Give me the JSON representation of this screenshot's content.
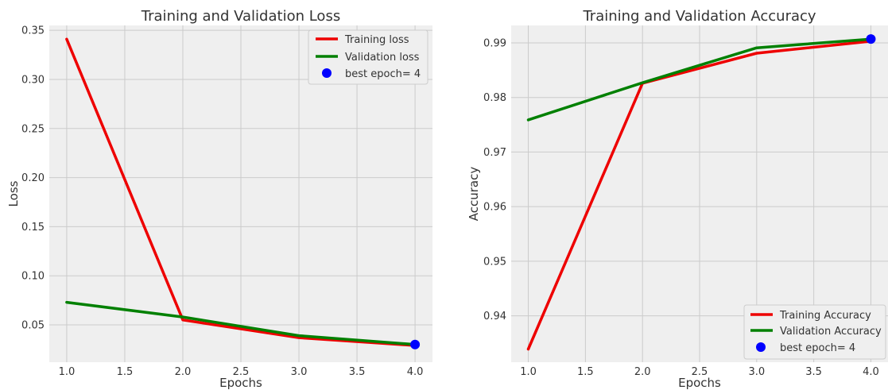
{
  "chart_data": [
    {
      "type": "line",
      "title": "Training and Validation Loss",
      "xlabel": "Epochs",
      "ylabel": "Loss",
      "xlim": [
        0.85,
        4.15
      ],
      "ylim": [
        0.012,
        0.355
      ],
      "xticks": [
        1.0,
        1.5,
        2.0,
        2.5,
        3.0,
        3.5,
        4.0
      ],
      "xtick_labels": [
        "1.0",
        "1.5",
        "2.0",
        "2.5",
        "3.0",
        "3.5",
        "4.0"
      ],
      "yticks": [
        0.05,
        0.1,
        0.15,
        0.2,
        0.25,
        0.3,
        0.35
      ],
      "ytick_labels": [
        "0.05",
        "0.10",
        "0.15",
        "0.20",
        "0.25",
        "0.30",
        "0.35"
      ],
      "x": [
        1,
        2,
        3,
        4
      ],
      "series": [
        {
          "name": "Training loss",
          "values": [
            0.341,
            0.055,
            0.037,
            0.029
          ],
          "color": "#ee0000"
        },
        {
          "name": "Validation loss",
          "values": [
            0.073,
            0.058,
            0.039,
            0.03
          ],
          "color": "#008000"
        }
      ],
      "best_point": {
        "name": "best epoch= 4",
        "x": 4,
        "y": 0.03,
        "color": "#0000ff"
      },
      "grid": true,
      "legend_position": "top-right"
    },
    {
      "type": "line",
      "title": "Training and Validation Accuracy",
      "xlabel": "Epochs",
      "ylabel": "Accuracy",
      "xlim": [
        0.85,
        4.15
      ],
      "ylim": [
        0.9315,
        0.9932
      ],
      "xticks": [
        1.0,
        1.5,
        2.0,
        2.5,
        3.0,
        3.5,
        4.0
      ],
      "xtick_labels": [
        "1.0",
        "1.5",
        "2.0",
        "2.5",
        "3.0",
        "3.5",
        "4.0"
      ],
      "yticks": [
        0.94,
        0.95,
        0.96,
        0.97,
        0.98,
        0.99
      ],
      "ytick_labels": [
        "0.94",
        "0.95",
        "0.96",
        "0.97",
        "0.98",
        "0.99"
      ],
      "x": [
        1,
        2,
        3,
        4
      ],
      "series": [
        {
          "name": "Training Accuracy",
          "values": [
            0.9339,
            0.9826,
            0.9881,
            0.9903
          ],
          "color": "#ee0000"
        },
        {
          "name": "Validation Accuracy",
          "values": [
            0.9759,
            0.9827,
            0.9891,
            0.9907
          ],
          "color": "#008000"
        }
      ],
      "best_point": {
        "name": "best epoch= 4",
        "x": 4,
        "y": 0.9907,
        "color": "#0000ff"
      },
      "grid": true,
      "legend_position": "bottom-right"
    }
  ]
}
